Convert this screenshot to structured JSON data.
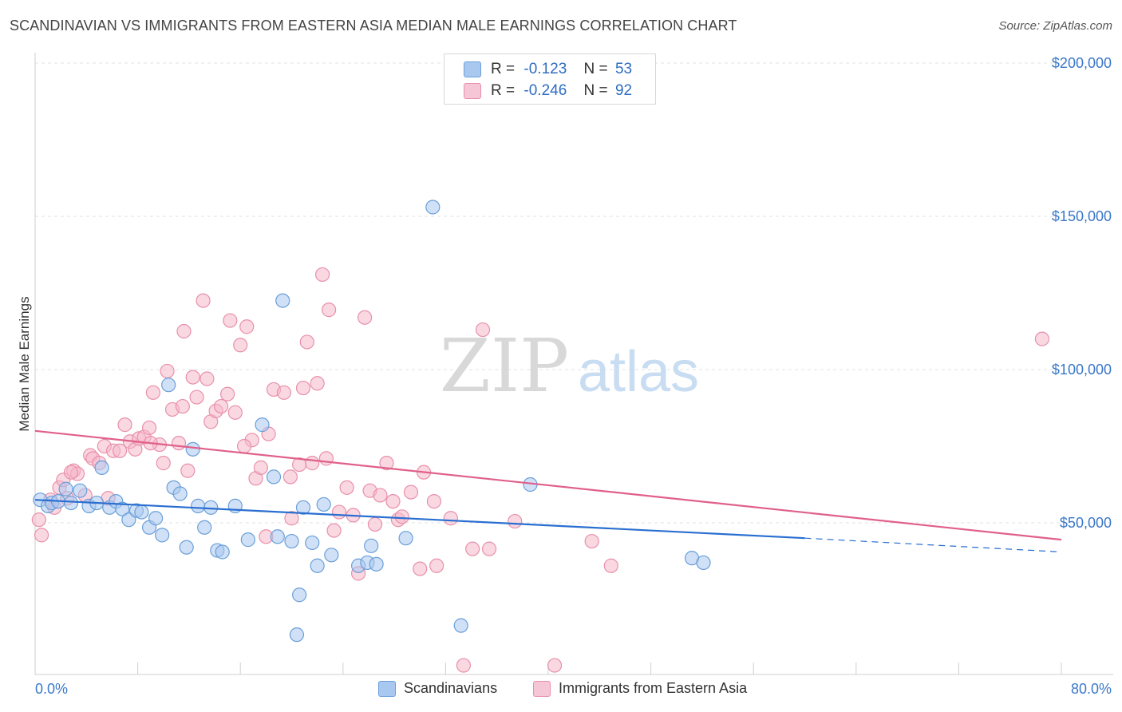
{
  "title": "SCANDINAVIAN VS IMMIGRANTS FROM EASTERN ASIA MEDIAN MALE EARNINGS CORRELATION CHART",
  "source": "Source: ZipAtlas.com",
  "watermark": {
    "zip": "ZIP",
    "atlas": "atlas"
  },
  "legend": {
    "series1": {
      "r_label": "R =",
      "r_value": "-0.123",
      "n_label": "N =",
      "n_value": "53"
    },
    "series2": {
      "r_label": "R =",
      "r_value": "-0.246",
      "n_label": "N =",
      "n_value": "92"
    }
  },
  "bottom_legend": {
    "series1": "Scandinavians",
    "series2": "Immigrants from Eastern Asia"
  },
  "colors": {
    "blue_fill": "#a9c8f0",
    "blue_stroke": "#6a9fd8",
    "blue_line": "#2a6fd0",
    "pink_fill": "#f5b8ca",
    "pink_stroke": "#e890ab",
    "pink_line": "#e0608a",
    "tick_text": "#3a78c9",
    "grid": "#e2e2e2"
  },
  "chart_data": {
    "type": "scatter",
    "title": "SCANDINAVIAN VS IMMIGRANTS FROM EASTERN ASIA MEDIAN MALE EARNINGS CORRELATION CHART",
    "xlabel": "",
    "ylabel": "Median Male Earnings",
    "xlim": [
      0,
      80
    ],
    "ylim": [
      0,
      210000
    ],
    "x_tick_labels": [
      "0.0%",
      "80.0%"
    ],
    "y_ticks": [
      50000,
      100000,
      150000,
      200000
    ],
    "y_tick_labels": [
      "$50,000",
      "$100,000",
      "$150,000",
      "$200,000"
    ],
    "series": [
      {
        "name": "Scandinavians",
        "color": "blue",
        "points": [
          [
            0.4,
            57500
          ],
          [
            1.0,
            55500
          ],
          [
            1.3,
            56500
          ],
          [
            1.8,
            57000
          ],
          [
            2.4,
            61000
          ],
          [
            2.8,
            56500
          ],
          [
            3.5,
            60500
          ],
          [
            4.2,
            55500
          ],
          [
            4.8,
            56500
          ],
          [
            5.2,
            68000
          ],
          [
            5.8,
            55000
          ],
          [
            6.3,
            57000
          ],
          [
            6.8,
            54500
          ],
          [
            7.3,
            51000
          ],
          [
            7.9,
            54000
          ],
          [
            8.3,
            53500
          ],
          [
            8.9,
            48500
          ],
          [
            9.4,
            51500
          ],
          [
            9.9,
            46000
          ],
          [
            10.4,
            95000
          ],
          [
            10.8,
            61500
          ],
          [
            11.3,
            59500
          ],
          [
            11.8,
            42000
          ],
          [
            12.3,
            74000
          ],
          [
            12.7,
            55500
          ],
          [
            13.2,
            48500
          ],
          [
            13.7,
            55000
          ],
          [
            14.2,
            41000
          ],
          [
            14.6,
            40500
          ],
          [
            15.6,
            55500
          ],
          [
            16.6,
            44500
          ],
          [
            17.7,
            82000
          ],
          [
            18.6,
            65000
          ],
          [
            18.9,
            45500
          ],
          [
            19.3,
            122500
          ],
          [
            20.0,
            44000
          ],
          [
            20.4,
            13500
          ],
          [
            20.9,
            55000
          ],
          [
            20.6,
            26500
          ],
          [
            21.6,
            43500
          ],
          [
            22.0,
            36000
          ],
          [
            22.5,
            56000
          ],
          [
            23.1,
            39500
          ],
          [
            25.2,
            36000
          ],
          [
            25.9,
            37000
          ],
          [
            26.2,
            42500
          ],
          [
            26.6,
            36500
          ],
          [
            28.9,
            45000
          ],
          [
            31.0,
            153000
          ],
          [
            33.2,
            16500
          ],
          [
            38.6,
            62500
          ],
          [
            51.2,
            38500
          ],
          [
            52.1,
            37000
          ]
        ],
        "trend": {
          "x0": 0,
          "y0": 57500,
          "x1": 60,
          "y1": 45000,
          "dash_x1": 80,
          "dash_y1": 40500
        }
      },
      {
        "name": "Immigrants from Eastern Asia",
        "color": "pink",
        "points": [
          [
            0.3,
            51000
          ],
          [
            0.5,
            46000
          ],
          [
            1.2,
            57500
          ],
          [
            1.5,
            55000
          ],
          [
            1.9,
            61500
          ],
          [
            2.2,
            64000
          ],
          [
            2.5,
            58000
          ],
          [
            3.0,
            67000
          ],
          [
            3.3,
            66000
          ],
          [
            3.9,
            59000
          ],
          [
            4.3,
            72000
          ],
          [
            4.5,
            71000
          ],
          [
            5.0,
            69500
          ],
          [
            5.4,
            75000
          ],
          [
            5.7,
            58000
          ],
          [
            6.1,
            73500
          ],
          [
            6.6,
            73500
          ],
          [
            7.0,
            82000
          ],
          [
            7.4,
            76500
          ],
          [
            7.8,
            74000
          ],
          [
            8.1,
            77500
          ],
          [
            8.5,
            78000
          ],
          [
            8.9,
            81000
          ],
          [
            9.2,
            92500
          ],
          [
            9.7,
            75500
          ],
          [
            10.0,
            69500
          ],
          [
            10.3,
            99500
          ],
          [
            10.7,
            87000
          ],
          [
            11.2,
            76000
          ],
          [
            11.6,
            112500
          ],
          [
            11.5,
            88000
          ],
          [
            11.9,
            67000
          ],
          [
            12.3,
            97500
          ],
          [
            12.6,
            91000
          ],
          [
            13.1,
            122500
          ],
          [
            13.4,
            97000
          ],
          [
            13.7,
            83000
          ],
          [
            14.1,
            86500
          ],
          [
            14.5,
            88000
          ],
          [
            15.0,
            92000
          ],
          [
            15.2,
            116000
          ],
          [
            15.6,
            86000
          ],
          [
            16.0,
            108000
          ],
          [
            16.5,
            114000
          ],
          [
            16.9,
            77000
          ],
          [
            17.2,
            64500
          ],
          [
            17.6,
            68000
          ],
          [
            18.0,
            45500
          ],
          [
            18.2,
            79000
          ],
          [
            18.6,
            93500
          ],
          [
            19.4,
            92500
          ],
          [
            20.0,
            51500
          ],
          [
            20.6,
            69000
          ],
          [
            20.9,
            94000
          ],
          [
            21.2,
            109000
          ],
          [
            21.6,
            69500
          ],
          [
            22.0,
            95500
          ],
          [
            22.4,
            131000
          ],
          [
            22.7,
            71000
          ],
          [
            22.9,
            119500
          ],
          [
            23.3,
            47500
          ],
          [
            23.7,
            53500
          ],
          [
            24.3,
            61500
          ],
          [
            24.8,
            52500
          ],
          [
            25.2,
            33500
          ],
          [
            25.7,
            117000
          ],
          [
            26.1,
            60500
          ],
          [
            26.5,
            49500
          ],
          [
            26.9,
            59000
          ],
          [
            27.4,
            69500
          ],
          [
            27.9,
            57000
          ],
          [
            28.3,
            51000
          ],
          [
            28.6,
            52000
          ],
          [
            29.3,
            60000
          ],
          [
            30.0,
            35000
          ],
          [
            30.3,
            66500
          ],
          [
            31.1,
            57000
          ],
          [
            31.3,
            36000
          ],
          [
            32.4,
            51500
          ],
          [
            33.4,
            3500
          ],
          [
            34.1,
            41500
          ],
          [
            34.9,
            113000
          ],
          [
            35.4,
            41500
          ],
          [
            37.4,
            50500
          ],
          [
            40.5,
            3500
          ],
          [
            43.4,
            44000
          ],
          [
            44.9,
            36000
          ],
          [
            78.5,
            110000
          ],
          [
            2.8,
            66500
          ],
          [
            9.0,
            76000
          ],
          [
            16.3,
            75000
          ],
          [
            19.9,
            65000
          ]
        ],
        "trend": {
          "x0": 0,
          "y0": 80000,
          "x1": 80,
          "y1": 44500
        }
      }
    ]
  }
}
